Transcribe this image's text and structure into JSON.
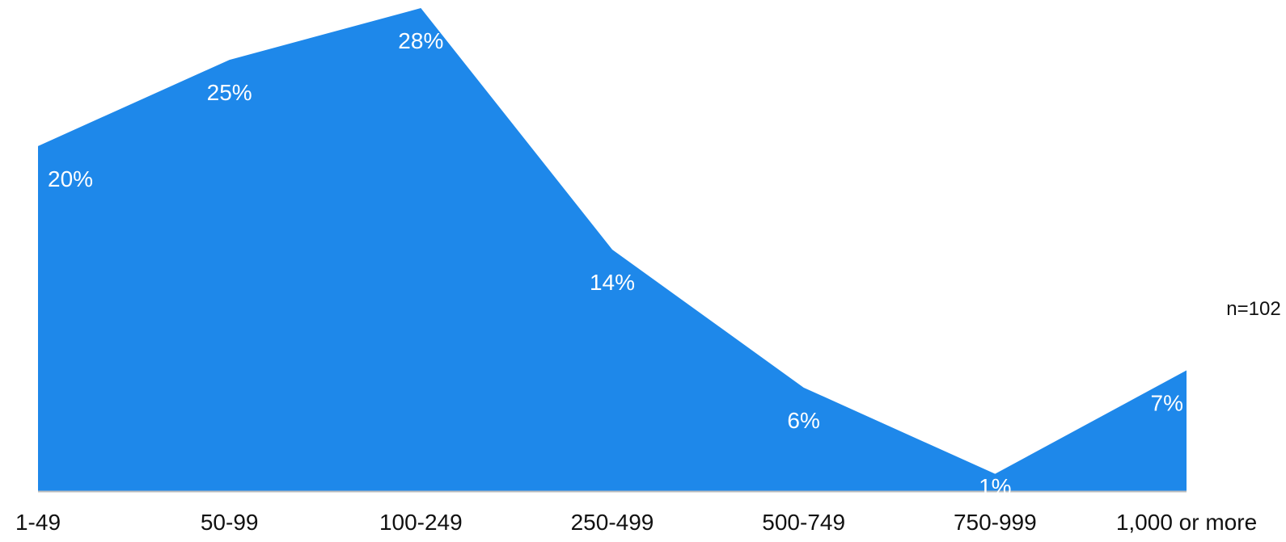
{
  "chart_data": {
    "type": "area",
    "title": "",
    "xlabel": "",
    "ylabel": "",
    "categories": [
      "1-49",
      "50-99",
      "100-249",
      "250-499",
      "500-749",
      "750-999",
      "1,000 or more"
    ],
    "series": [
      {
        "values": [
          20,
          25,
          28,
          14,
          6,
          1,
          7
        ],
        "labels": [
          "20%",
          "25%",
          "28%",
          "14%",
          "6%",
          "1%",
          "7%"
        ],
        "color": "#1e88ea"
      }
    ],
    "ylim": [
      0,
      28
    ],
    "grid": false,
    "legend": "none",
    "baseline_color": "#bdbdbd",
    "note": "n=102"
  }
}
